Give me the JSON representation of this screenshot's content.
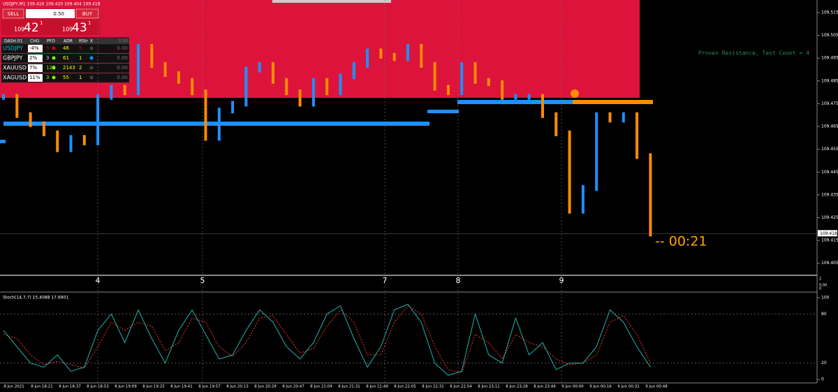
{
  "header": {
    "symbol_line": "USDJPY,M1 109.416 109.420 109.404 109.418"
  },
  "trade_panel": {
    "sell": "SELL",
    "lot": "0.50",
    "buy": "BUY",
    "sell_price": {
      "prefix": "109",
      "big": "42",
      "sup": "1"
    },
    "buy_price": {
      "prefix": "109",
      "big": "43",
      "sup": "1"
    }
  },
  "dashboard": {
    "columns": [
      "DASH.01",
      "CHG",
      "PFO",
      "ADR",
      "RStr",
      "X",
      "0.00"
    ],
    "rows": [
      [
        "USDJPY",
        "-4%",
        "5",
        "46",
        "5",
        "0.00"
      ],
      [
        "GBPJPY",
        "2%",
        "3",
        "61",
        "1",
        "0.00"
      ],
      [
        "XAUUSD",
        "7%",
        "125",
        "2143",
        "2",
        "0.00"
      ],
      [
        "XAGUSD",
        "11%",
        "3",
        "55",
        "1",
        "0.00"
      ]
    ]
  },
  "chart": {
    "type": "bar",
    "ylim": [
      109.4,
      109.52
    ],
    "yticks": [
      109.515,
      109.505,
      109.495,
      109.485,
      109.475,
      109.465,
      109.455,
      109.445,
      109.435,
      109.425,
      109.415,
      109.405
    ],
    "current_price": 109.418,
    "close": [
      109.478,
      109.47,
      109.466,
      109.462,
      109.455,
      109.46,
      109.458,
      109.478,
      109.482,
      109.48,
      109.5,
      109.492,
      109.488,
      109.485,
      109.48,
      109.46,
      109.472,
      109.475,
      109.49,
      109.492,
      109.485,
      109.48,
      109.475,
      109.485,
      109.48,
      109.487,
      109.492,
      109.498,
      109.496,
      109.495,
      109.5,
      109.492,
      109.482,
      109.48,
      109.492,
      109.485,
      109.484,
      109.478,
      109.478,
      109.478,
      109.47,
      109.462,
      109.428,
      109.438,
      109.47,
      109.468,
      109.47,
      109.452,
      109.418
    ],
    "day_labels": [
      "4",
      "5",
      "7",
      "8",
      "9"
    ],
    "annotation": "Proven Resistance, Test Count = 4",
    "countdown": "-- 00:21",
    "separator_labels": [
      "2",
      "0.00",
      "0"
    ],
    "time_labels": [
      "8 Jun 2021",
      "8 Jun 18:21",
      "8 Jun 18:37",
      "8 Jun 18:53",
      "8 Jun 19:09",
      "8 Jun 19:25",
      "8 Jun 19:41",
      "8 Jun 19:57",
      "8 Jun 20:13",
      "8 Jun 20:29",
      "8 Jun 20:47",
      "8 Jun 21:09",
      "8 Jun 21:31",
      "8 Jun 21:49",
      "8 Jun 22:05",
      "8 Jun 22:31",
      "8 Jun 22:54",
      "8 Jun 23:11",
      "8 Jun 23:28",
      "8 Jun 23:44",
      "9 Jun 00:00",
      "9 Jun 00:16",
      "9 Jun 00:32",
      "9 Jun 00:48"
    ],
    "stoch": {
      "label": "Stoch(14,7,7) 15.4088 17.6901",
      "ylim": [
        0,
        100
      ],
      "yticks": [
        100,
        80,
        20,
        0
      ],
      "main": [
        60,
        40,
        20,
        15,
        30,
        10,
        15,
        60,
        80,
        45,
        85,
        50,
        20,
        60,
        85,
        55,
        25,
        30,
        60,
        85,
        70,
        40,
        25,
        45,
        80,
        90,
        50,
        15,
        40,
        85,
        92,
        70,
        20,
        5,
        10,
        80,
        30,
        20,
        75,
        30,
        45,
        12,
        20,
        20,
        40,
        85,
        70,
        40,
        15
      ],
      "signal": [
        55,
        50,
        30,
        18,
        22,
        18,
        14,
        40,
        70,
        60,
        70,
        65,
        35,
        45,
        75,
        70,
        40,
        28,
        45,
        75,
        78,
        55,
        32,
        38,
        65,
        85,
        70,
        30,
        30,
        70,
        90,
        80,
        40,
        12,
        8,
        55,
        45,
        25,
        55,
        45,
        40,
        25,
        18,
        20,
        30,
        70,
        78,
        55,
        20
      ]
    }
  }
}
